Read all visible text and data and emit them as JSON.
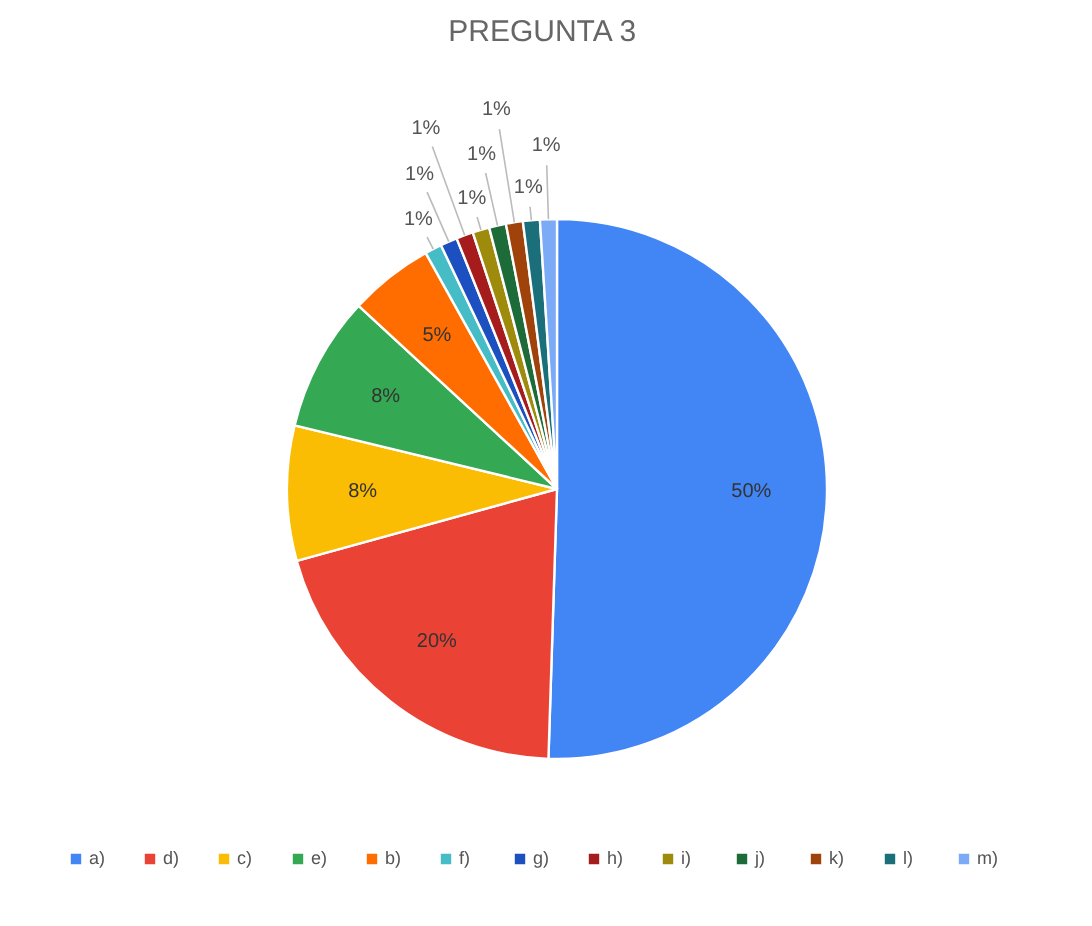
{
  "chart_data": {
    "type": "pie",
    "title": "PREGUNTA 3",
    "categories": [
      "a)",
      "d)",
      "c)",
      "e)",
      "b)",
      "f)",
      "g)",
      "h)",
      "i)",
      "j)",
      "k)",
      "l)",
      "m)"
    ],
    "values": [
      50,
      20,
      8,
      8,
      5,
      1,
      1,
      1,
      1,
      1,
      1,
      1,
      1
    ],
    "value_labels": [
      "50%",
      "20%",
      "8%",
      "8%",
      "5%",
      "1%",
      "1%",
      "1%",
      "1%",
      "1%",
      "1%",
      "1%",
      "1%"
    ],
    "colors": [
      "#4285f4",
      "#ea4335",
      "#fbbc04",
      "#34a853",
      "#ff6d01",
      "#46bdc6",
      "#1c4fbf",
      "#a61c1c",
      "#9e8a0b",
      "#1e6b3a",
      "#a0430a",
      "#1b6f7a",
      "#7baaf7"
    ],
    "legend": "bottom"
  }
}
